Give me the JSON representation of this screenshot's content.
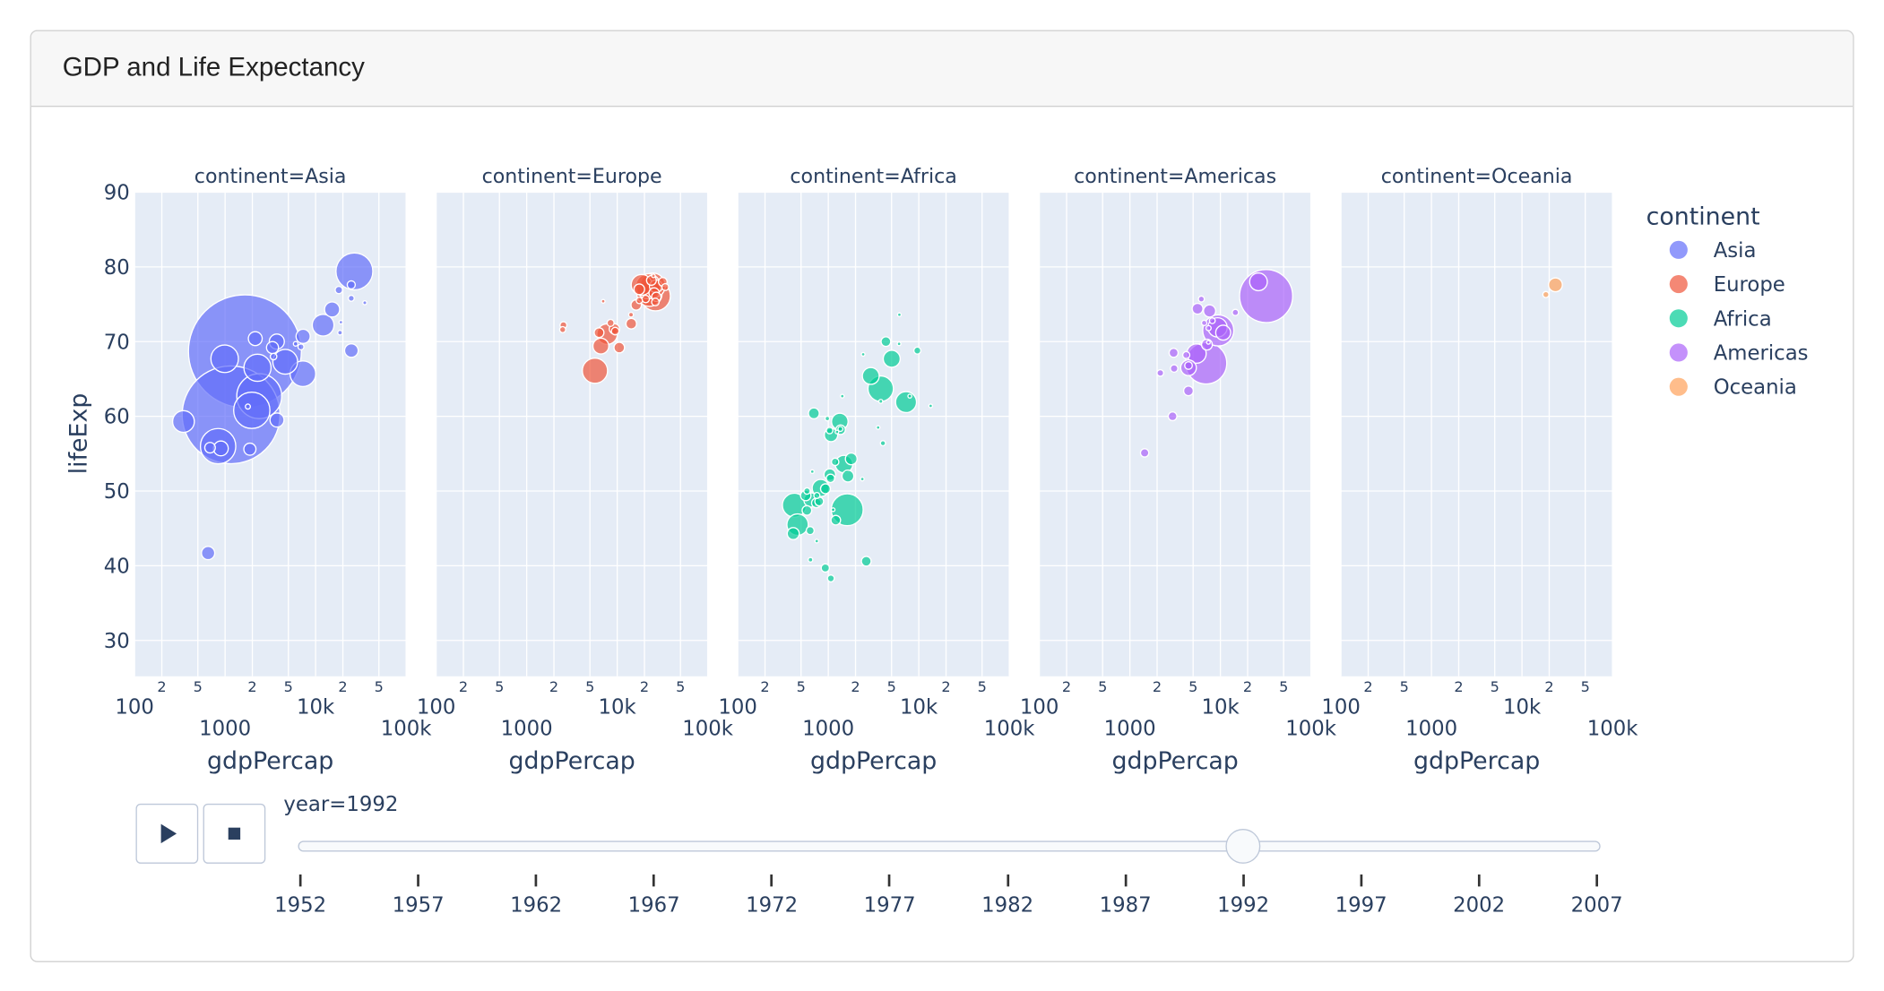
{
  "card": {
    "title": "GDP and Life Expectancy"
  },
  "chart_data": {
    "type": "scatter",
    "subtype": "bubble",
    "facet_titles": [
      "continent=Asia",
      "continent=Europe",
      "continent=Africa",
      "continent=Americas",
      "continent=Oceania"
    ],
    "xlabel": "gdpPercap",
    "ylabel": "lifeExp",
    "x_scale": "log",
    "xlim": [
      100,
      100000
    ],
    "ylim": [
      25.2,
      90
    ],
    "x_tick_values": [
      100,
      200,
      500,
      1000,
      2000,
      5000,
      10000,
      20000,
      50000,
      100000
    ],
    "x_tick_labels": [
      "100",
      "2",
      "5",
      "1000",
      "2",
      "5",
      "10k",
      "2",
      "5",
      "100k"
    ],
    "y_tick_values": [
      30,
      40,
      50,
      60,
      70,
      80,
      90
    ],
    "y_tick_labels": [
      "30",
      "40",
      "50",
      "60",
      "70",
      "80",
      "90"
    ],
    "size_variable_units": "population (millions)",
    "grid": true,
    "legend": {
      "title": "continent",
      "placement": "right"
    },
    "series": [
      {
        "name": "Asia",
        "color": "#636efa",
        "x": [
          1656,
          1164,
          2383,
          1972,
          837,
          26824,
          989,
          2279,
          4617,
          7235,
          12104,
          347,
          649,
          898,
          3746,
          24841,
          7277,
          15216,
          2154,
          3726,
          1879,
          3340,
          682,
          24757,
          18051,
          24769,
          3431,
          6890,
          1785,
          18617,
          34933,
          6018,
          19036
        ],
        "y": [
          68.7,
          60.2,
          62.7,
          60.8,
          56.0,
          79.4,
          67.7,
          66.5,
          67.3,
          65.7,
          72.2,
          59.3,
          41.7,
          55.7,
          59.5,
          68.8,
          70.7,
          74.3,
          70.4,
          70.0,
          55.6,
          69.2,
          55.8,
          77.6,
          76.9,
          75.8,
          68.0,
          69.3,
          61.3,
          71.2,
          75.2,
          69.7,
          72.6
        ],
        "pop": [
          1164,
          872,
          184,
          120,
          114,
          124,
          69,
          67,
          56,
          60,
          43,
          43,
          16,
          20,
          17.9,
          16.9,
          18.3,
          20.7,
          17.6,
          20.7,
          13.4,
          13.2,
          10.2,
          5.9,
          4.9,
          3.2,
          3.9,
          3.2,
          2.3,
          1.9,
          1.4,
          1.9,
          0.5
        ]
      },
      {
        "name": "Europe",
        "color": "#EF553B",
        "x": [
          26505,
          5678,
          22705,
          24704,
          22014,
          18603,
          7739,
          6598,
          26790,
          9326,
          16207,
          17541,
          14297,
          25576,
          10536,
          23880,
          6303,
          27042,
          31872,
          26407,
          20647,
          9498,
          8448,
          2546,
          33966,
          17559,
          2497,
          14215,
          7003,
          25144
        ],
        "y": [
          76.1,
          66.1,
          76.4,
          77.5,
          77.4,
          77.6,
          71.0,
          69.4,
          77.4,
          71.7,
          74.9,
          77.0,
          72.4,
          76.5,
          69.2,
          78.2,
          71.2,
          76.0,
          78.0,
          75.3,
          75.7,
          71.4,
          72.5,
          72.2,
          77.3,
          75.5,
          71.6,
          73.6,
          75.4,
          78.8
        ],
        "pop": [
          80.6,
          58,
          57.9,
          57.4,
          56.8,
          39.5,
          38.4,
          22.8,
          15.2,
          9.8,
          9.9,
          10.3,
          10.3,
          10.0,
          10.3,
          8.7,
          8.7,
          7.9,
          6.9,
          5.2,
          5.0,
          5.3,
          4.5,
          4.3,
          4.3,
          3.6,
          3.3,
          2.0,
          0.6,
          0.26
        ]
      },
      {
        "name": "Africa",
        "color": "#00cc96",
        "x": [
          1619,
          3795,
          422,
          458,
          7226,
          825,
          1492,
          1341,
          2948,
          5023,
          644,
          1072,
          410,
          1040,
          1648,
          1793,
          693,
          2628,
          564,
          739,
          931,
          581,
          4332,
          1210,
          1367,
          927,
          794,
          1058,
          631,
          1191,
          1068,
          1034,
          9640,
          636,
          748,
          4016,
          1361,
          582,
          977,
          3804,
          7954,
          13522,
          6058,
          666,
          746,
          3553,
          6101,
          1246,
          2377,
          1132,
          2430,
          1428
        ],
        "y": [
          47.5,
          63.7,
          48.1,
          45.5,
          61.9,
          50.4,
          53.6,
          59.3,
          65.4,
          67.7,
          48.8,
          57.5,
          44.3,
          52.2,
          52.0,
          54.3,
          60.4,
          40.6,
          49.4,
          48.4,
          50.3,
          47.4,
          70.0,
          46.1,
          58.2,
          39.7,
          48.6,
          51.7,
          44.7,
          53.9,
          38.3,
          58.1,
          68.8,
          40.8,
          49.4,
          56.4,
          58.3,
          50.0,
          59.7,
          62.0,
          62.7,
          61.4,
          69.7,
          52.6,
          43.3,
          58.5,
          73.6,
          57.9,
          51.6,
          47.5,
          68.3,
          62.7
        ],
        "pop": [
          93,
          59,
          52,
          41.7,
          40,
          26.6,
          28.2,
          25,
          25.8,
          26.3,
          18.3,
          16.3,
          13.2,
          12.2,
          12.8,
          12.5,
          10.7,
          8.7,
          10.0,
          8.4,
          8.9,
          8.4,
          8.5,
          8.4,
          8.3,
          6.1,
          7.0,
          6.4,
          5.8,
          5.0,
          4.3,
          3.9,
          4.4,
          1.9,
          3.3,
          2.4,
          2.1,
          3.7,
          1.8,
          1.4,
          1.3,
          0.99,
          1.1,
          1.0,
          1.05,
          0.96,
          0.62,
          0.45,
          0.38,
          0.39,
          0.37,
          0.13
        ]
      },
      {
        "name": "Americas",
        "color": "#ab63fa",
        "x": [
          32004,
          6950,
          9472,
          5445,
          9308,
          26343,
          4446,
          10734,
          7596,
          7103,
          4439,
          5593,
          1456,
          3044,
          2962,
          3082,
          4444,
          4196,
          2170,
          6160,
          14641,
          8137,
          6619,
          7404,
          7370
        ],
        "y": [
          76.1,
          67.1,
          71.5,
          68.4,
          71.9,
          78.0,
          66.5,
          71.2,
          74.1,
          69.6,
          63.4,
          74.4,
          55.1,
          68.5,
          60.0,
          66.4,
          66.8,
          68.2,
          65.8,
          75.7,
          73.9,
          72.8,
          72.5,
          71.8,
          69.9
        ],
        "pop": [
          256.9,
          156,
          88.1,
          34.2,
          34.0,
          28.5,
          22.4,
          20.3,
          13.6,
          10.7,
          8.5,
          10.7,
          6.3,
          7.35,
          6.9,
          5.1,
          5.3,
          4.5,
          4.0,
          3.2,
          3.6,
          3.1,
          2.5,
          2.4,
          1.2
        ]
      },
      {
        "name": "Oceania",
        "color": "#FFA15A",
        "x": [
          23425,
          18363
        ],
        "y": [
          77.6,
          76.3
        ],
        "pop": [
          17.5,
          3.4
        ]
      }
    ]
  },
  "controls": {
    "play_icon": "play-icon",
    "stop_icon": "stop-icon",
    "slider_label": "year=1992",
    "current_year": 1992,
    "years": [
      "1952",
      "1957",
      "1962",
      "1967",
      "1972",
      "1977",
      "1982",
      "1987",
      "1992",
      "1997",
      "2002",
      "2007"
    ]
  }
}
